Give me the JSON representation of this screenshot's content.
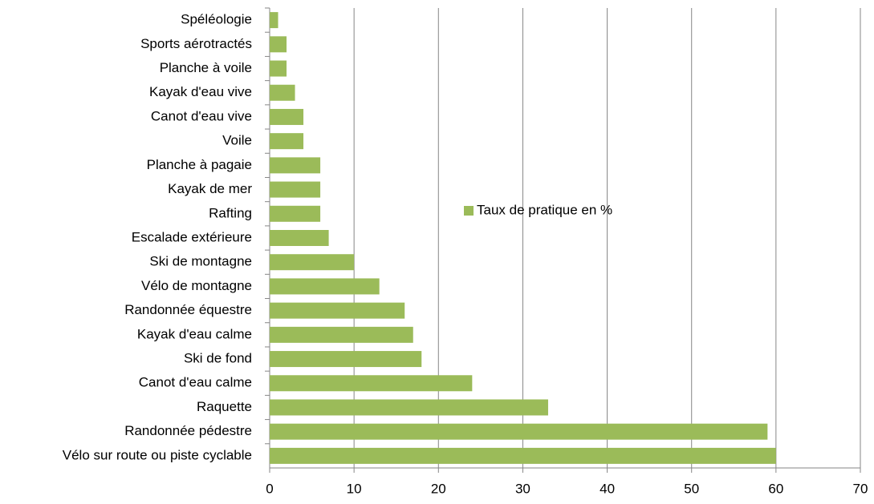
{
  "chart_data": {
    "type": "bar",
    "orientation": "horizontal",
    "categories": [
      "Spéléologie",
      "Sports aérotractés",
      "Planche à voile",
      "Kayak d'eau vive",
      "Canot d'eau vive",
      "Voile",
      "Planche à pagaie",
      "Kayak de mer",
      "Rafting",
      "Escalade extérieure",
      "Ski de montagne",
      "Vélo de montagne",
      "Randonnée équestre",
      "Kayak d'eau calme",
      "Ski de fond",
      "Canot d'eau calme",
      "Raquette",
      "Randonnée pédestre",
      "Vélo sur route ou piste cyclable"
    ],
    "series": [
      {
        "name": "Taux de pratique en %",
        "color": "#9bbb59",
        "values": [
          1,
          2,
          2,
          3,
          4,
          4,
          6,
          6,
          6,
          7,
          10,
          13,
          16,
          17,
          18,
          24,
          33,
          59,
          60
        ]
      }
    ],
    "xlim": [
      0,
      70
    ],
    "xticks": [
      0,
      10,
      20,
      30,
      40,
      50,
      60,
      70
    ],
    "grid": true,
    "legend": "center"
  }
}
